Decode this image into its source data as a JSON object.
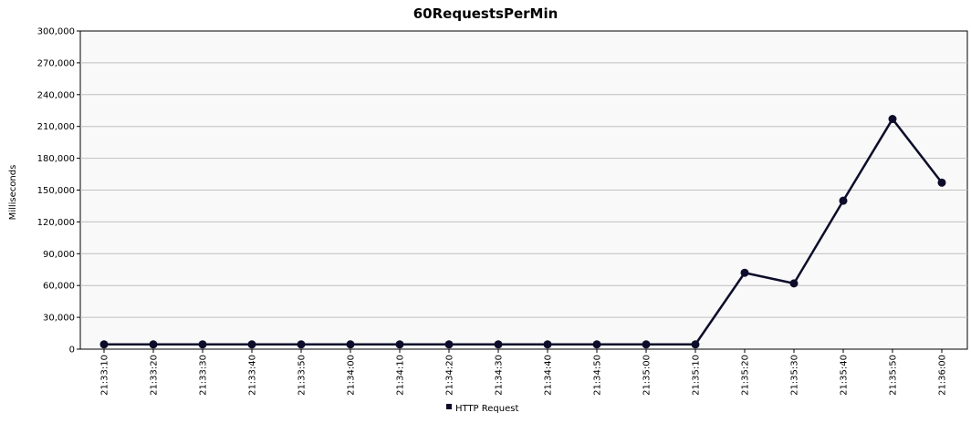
{
  "chart_data": {
    "type": "line",
    "title": "60RequestsPerMin",
    "xlabel": "",
    "ylabel": "Milliseconds",
    "categories": [
      "21:33:10",
      "21:33:20",
      "21:33:30",
      "21:33:40",
      "21:33:50",
      "21:34:00",
      "21:34:10",
      "21:34:20",
      "21:34:30",
      "21:34:40",
      "21:34:50",
      "21:35:00",
      "21:35:10",
      "21:35:20",
      "21:35:30",
      "21:35:40",
      "21:35:50",
      "21:36:00"
    ],
    "yticks": [
      "0",
      "30,000",
      "60,000",
      "90,000",
      "120,000",
      "150,000",
      "180,000",
      "210,000",
      "240,000",
      "270,000",
      "300,000"
    ],
    "ylim": [
      0,
      300000
    ],
    "grid": true,
    "legend_position": "bottom",
    "series": [
      {
        "name": "HTTP Request",
        "color": "#0d0d2b",
        "values": [
          4500,
          4500,
          4500,
          4500,
          4500,
          4500,
          4500,
          4500,
          4500,
          4500,
          4500,
          4500,
          4500,
          72000,
          62000,
          140000,
          217000,
          157000
        ]
      }
    ]
  }
}
